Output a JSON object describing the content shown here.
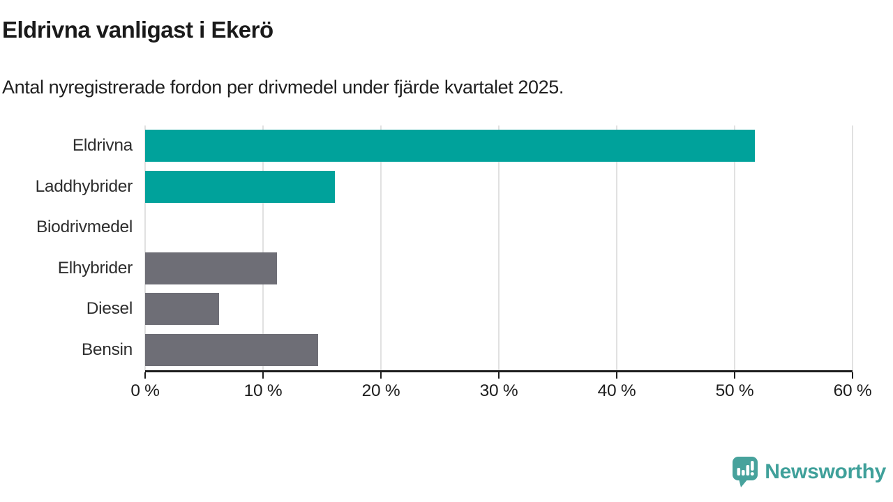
{
  "chart_data": {
    "type": "bar",
    "orientation": "horizontal",
    "title": "Eldrivna vanligast i Ekerö",
    "subtitle": "Antal nyregistrerade fordon per drivmedel under fjärde kvartalet 2025.",
    "categories": [
      "Eldrivna",
      "Laddhybrider",
      "Biodrivmedel",
      "Elhybrider",
      "Diesel",
      "Bensin"
    ],
    "values": [
      51.7,
      16.1,
      0,
      11.2,
      6.3,
      14.7
    ],
    "unit": "%",
    "xlim": [
      0,
      60
    ],
    "x_ticks": [
      0,
      10,
      20,
      30,
      40,
      50,
      60
    ],
    "x_tick_labels": [
      "0 %",
      "10 %",
      "20 %",
      "30 %",
      "40 %",
      "50 %",
      "60 %"
    ],
    "bar_colors": [
      "#00a29b",
      "#00a29b",
      "#6e6e76",
      "#6e6e76",
      "#6e6e76",
      "#6e6e76"
    ],
    "grid": true,
    "legend": "none",
    "colors": {
      "highlight": "#00a29b",
      "default": "#6e6e76",
      "gridline": "#e1e1e1",
      "axis": "#1d1d1d"
    }
  },
  "logo": {
    "text": "Newsworthy",
    "icon": "newsworthy-speech-bubble-bar-chart-icon",
    "color": "#3fa09a"
  }
}
